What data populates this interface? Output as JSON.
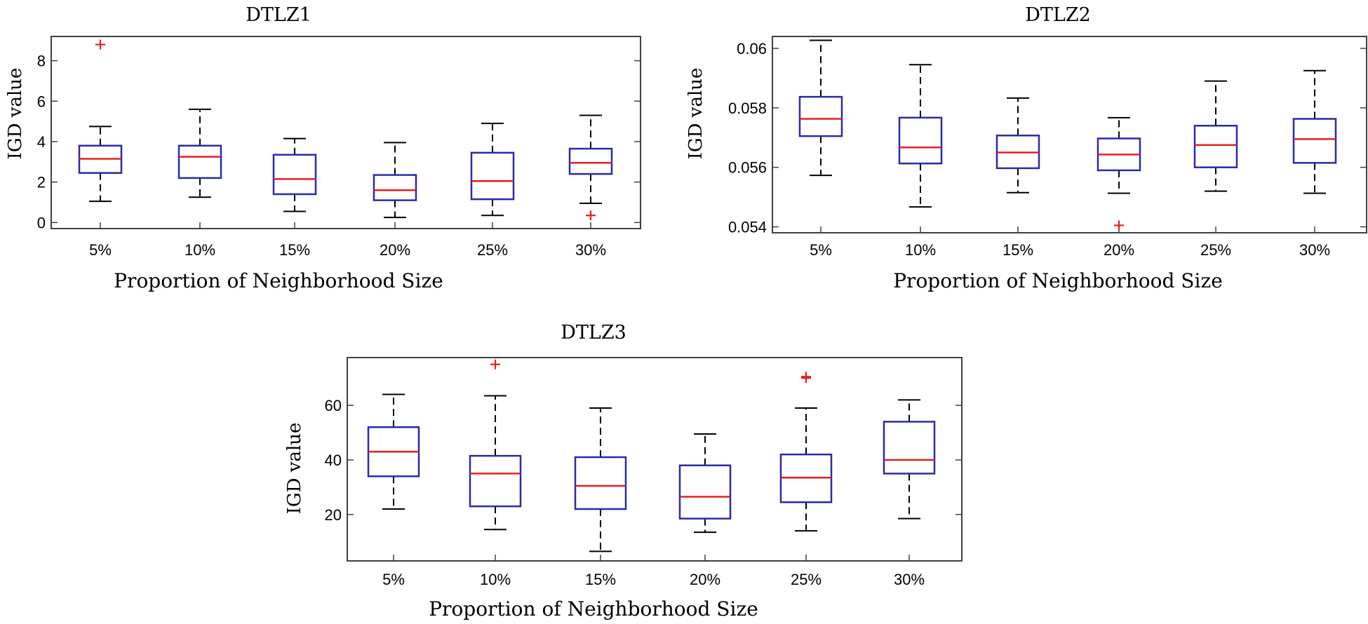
{
  "chart_data": [
    {
      "type": "box",
      "title": "DTLZ1",
      "xlabel": "Proportion of Neighborhood Size",
      "ylabel": "IGD value",
      "categories": [
        "5%",
        "10%",
        "15%",
        "20%",
        "25%",
        "30%"
      ],
      "ylim": [
        -0.3,
        9.2
      ],
      "yticks": [
        0,
        2,
        4,
        6,
        8
      ],
      "ytick_labels": [
        "0",
        "2",
        "4",
        "6",
        "8"
      ],
      "boxes": [
        {
          "whisker_low": 1.05,
          "q1": 2.45,
          "median": 3.15,
          "q3": 3.8,
          "whisker_high": 4.75,
          "outliers": [
            8.8
          ]
        },
        {
          "whisker_low": 1.25,
          "q1": 2.2,
          "median": 3.25,
          "q3": 3.8,
          "whisker_high": 5.6,
          "outliers": []
        },
        {
          "whisker_low": 0.55,
          "q1": 1.4,
          "median": 2.15,
          "q3": 3.35,
          "whisker_high": 4.15,
          "outliers": []
        },
        {
          "whisker_low": 0.25,
          "q1": 1.1,
          "median": 1.6,
          "q3": 2.35,
          "whisker_high": 3.95,
          "outliers": []
        },
        {
          "whisker_low": 0.35,
          "q1": 1.15,
          "median": 2.05,
          "q3": 3.45,
          "whisker_high": 4.9,
          "outliers": []
        },
        {
          "whisker_low": 0.95,
          "q1": 2.4,
          "median": 2.95,
          "q3": 3.65,
          "whisker_high": 5.3,
          "outliers": [
            0.35
          ]
        }
      ]
    },
    {
      "type": "box",
      "title": "DTLZ2",
      "xlabel": "Proportion of Neighborhood Size",
      "ylabel": "IGD value",
      "categories": [
        "5%",
        "10%",
        "15%",
        "20%",
        "25%",
        "30%"
      ],
      "ylim": [
        0.0538,
        0.0604
      ],
      "yticks": [
        0.054,
        0.056,
        0.058,
        0.06
      ],
      "ytick_labels": [
        "0.054",
        "0.056",
        "0.058",
        "0.06"
      ],
      "boxes": [
        {
          "whisker_low": 0.05573,
          "q1": 0.05705,
          "median": 0.05763,
          "q3": 0.05837,
          "whisker_high": 0.06027,
          "outliers": []
        },
        {
          "whisker_low": 0.05467,
          "q1": 0.05613,
          "median": 0.05667,
          "q3": 0.05767,
          "whisker_high": 0.05945,
          "outliers": []
        },
        {
          "whisker_low": 0.05515,
          "q1": 0.05597,
          "median": 0.0565,
          "q3": 0.05707,
          "whisker_high": 0.05833,
          "outliers": []
        },
        {
          "whisker_low": 0.05513,
          "q1": 0.0559,
          "median": 0.05643,
          "q3": 0.05697,
          "whisker_high": 0.05767,
          "outliers": [
            0.05405
          ]
        },
        {
          "whisker_low": 0.0552,
          "q1": 0.056,
          "median": 0.05675,
          "q3": 0.0574,
          "whisker_high": 0.0589,
          "outliers": []
        },
        {
          "whisker_low": 0.05513,
          "q1": 0.05615,
          "median": 0.05695,
          "q3": 0.05763,
          "whisker_high": 0.05925,
          "outliers": []
        }
      ]
    },
    {
      "type": "box",
      "title": "DTLZ3",
      "xlabel": "Proportion of Neighborhood Size",
      "ylabel": "IGD value",
      "categories": [
        "5%",
        "10%",
        "15%",
        "20%",
        "25%",
        "30%"
      ],
      "ylim": [
        3.0,
        77.5
      ],
      "yticks": [
        20,
        40,
        60
      ],
      "ytick_labels": [
        "20",
        "40",
        "60"
      ],
      "boxes": [
        {
          "whisker_low": 22,
          "q1": 34,
          "median": 43,
          "q3": 52,
          "whisker_high": 64,
          "outliers": []
        },
        {
          "whisker_low": 14.5,
          "q1": 23,
          "median": 35,
          "q3": 41.5,
          "whisker_high": 63.5,
          "outliers": [
            75
          ]
        },
        {
          "whisker_low": 6.5,
          "q1": 22,
          "median": 30.5,
          "q3": 41,
          "whisker_high": 59,
          "outliers": []
        },
        {
          "whisker_low": 13.5,
          "q1": 18.5,
          "median": 26.5,
          "q3": 38,
          "whisker_high": 49.5,
          "outliers": []
        },
        {
          "whisker_low": 14,
          "q1": 24.5,
          "median": 33.5,
          "q3": 42,
          "whisker_high": 59,
          "outliers": [
            70,
            70.5
          ]
        },
        {
          "whisker_low": 18.5,
          "q1": 35,
          "median": 40,
          "q3": 54,
          "whisker_high": 62,
          "outliers": []
        }
      ]
    }
  ]
}
